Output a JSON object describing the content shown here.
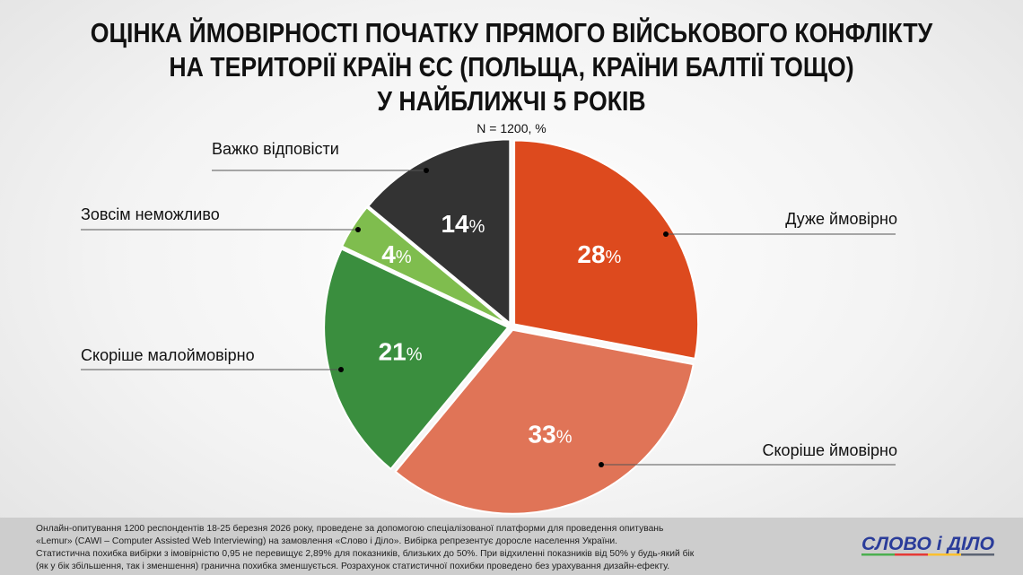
{
  "title_lines": [
    "ОЦІНКА ЙМОВІРНОСТІ ПОЧАТКУ ПРЯМОГО ВІЙСЬКОВОГО КОНФЛІКТУ",
    "НА ТЕРИТОРІЇ КРАЇН ЄС (ПОЛЬЩА, КРАЇНИ БАЛТІЇ ТОЩО)",
    "У НАЙБЛИЖЧІ 5 РОКІВ"
  ],
  "subtitle": "N = 1200, %",
  "chart_data": {
    "type": "pie",
    "title": "ОЦІНКА ЙМОВІРНОСТІ ПОЧАТКУ ПРЯМОГО ВІЙСЬКОВОГО КОНФЛІКТУ НА ТЕРИТОРІЇ КРАЇН ЄС (ПОЛЬЩА, КРАЇНИ БАЛТІЇ ТОЩО) У НАЙБЛИЖЧІ 5 РОКІВ",
    "subtitle": "N = 1200, %",
    "unit": "%",
    "slices": [
      {
        "label": "Дуже ймовірно",
        "value": 28,
        "color": "#dd4a1e"
      },
      {
        "label": "Скоріше ймовірно",
        "value": 33,
        "color": "#e07457"
      },
      {
        "label": "Скоріше малоймовірно",
        "value": 21,
        "color": "#3a8e3e"
      },
      {
        "label": "Зовсім неможливо",
        "value": 4,
        "color": "#7fbd4e"
      },
      {
        "label": "Важко відповісти",
        "value": 14,
        "color": "#333333"
      }
    ]
  },
  "footer": {
    "lines": [
      "Онлайн-опитування 1200 респондентів 18-25 березня 2026 року, проведене за допомогою спеціалізованої платформи для проведення опитувань",
      "«Lemur» (CAWI – Computer Assisted Web Interviewing) на замовлення «Слово і Діло». Вибірка репрезентує доросле населення України.",
      "Статистична похибка вибірки з імовірністю 0,95 не перевищує 2,89% для показників, близьких до 50%. При відхиленні показників від 50% у будь-який бік",
      "(як у бік збільшення, так і зменшення) гранична похибка зменшується. Розрахунок статистичної похибки проведено без урахування дизайн-ефекту."
    ]
  },
  "logo": {
    "text": "СЛОВО і ДІЛО",
    "colors": [
      "#4caf50",
      "#e53935",
      "#fbc02d",
      "#5c6474"
    ],
    "text_color": "#2a3c9a"
  }
}
